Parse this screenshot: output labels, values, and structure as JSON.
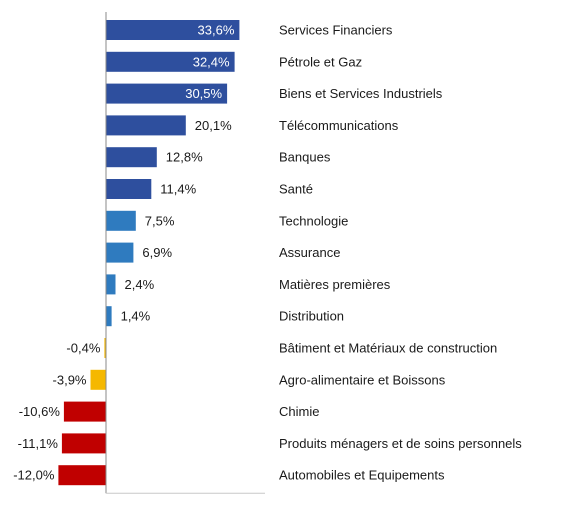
{
  "chart_data": {
    "type": "bar",
    "orientation": "horizontal",
    "categories": [
      "Services Financiers",
      "Pétrole et Gaz",
      "Biens et Services Industriels",
      "Télécommunications",
      "Banques",
      "Santé",
      "Technologie",
      "Assurance",
      "Matières premières",
      "Distribution",
      "Bâtiment et Matériaux de construction",
      "Agro-alimentaire et Boissons",
      "Chimie",
      "Produits ménagers et de soins personnels",
      "Automobiles et Equipements"
    ],
    "values": [
      33.6,
      32.4,
      30.5,
      20.1,
      12.8,
      11.4,
      7.5,
      6.9,
      2.4,
      1.4,
      -0.4,
      -3.9,
      -10.6,
      -11.1,
      -12.0
    ],
    "value_labels": [
      "33,6%",
      "32,4%",
      "30,5%",
      "20,1%",
      "12,8%",
      "11,4%",
      "7,5%",
      "6,9%",
      "2,4%",
      "1,4%",
      "-0,4%",
      "-3,9%",
      "-10,6%",
      "-11,1%",
      "-12,0%"
    ],
    "colors": [
      "#2e4f9e",
      "#2e4f9e",
      "#2e4f9e",
      "#2e4f9e",
      "#2e4f9e",
      "#2e4f9e",
      "#2f7bbf",
      "#2f7bbf",
      "#2f7bbf",
      "#2f7bbf",
      "#f5b800",
      "#f5b800",
      "#c00000",
      "#c00000",
      "#c00000"
    ],
    "inside_label_threshold": 30,
    "title": "",
    "xlabel": "",
    "ylabel": "",
    "grid": false,
    "legend": "none"
  }
}
